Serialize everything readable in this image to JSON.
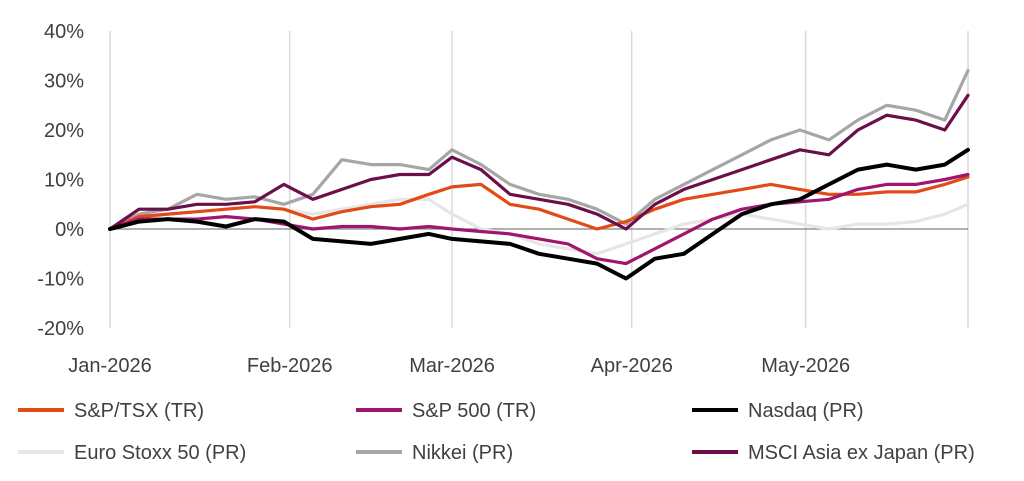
{
  "chart_data": {
    "type": "line",
    "title": "",
    "xlabel": "",
    "ylabel": "",
    "ylim": [
      -20,
      40
    ],
    "yticks": [
      -20,
      -10,
      0,
      10,
      20,
      30,
      40
    ],
    "ytick_labels": [
      "-20%",
      "-10%",
      "0%",
      "10%",
      "20%",
      "30%",
      "40%"
    ],
    "xlim": [
      "2026-01-01",
      "2026-05-29"
    ],
    "x_tick_dates": [
      "2026-01-01",
      "2026-02-01",
      "2026-03-01",
      "2026-04-01",
      "2026-05-01"
    ],
    "x_tick_labels": [
      "Jan-2026",
      "Feb-2026",
      "Mar-2026",
      "Apr-2026",
      "May-2026"
    ],
    "grid": "vertical",
    "legend": "bottom",
    "series": [
      {
        "name": "S&P/TSX (TR)",
        "color": "#E24A16",
        "x": [
          "2026-01-01",
          "2026-01-06",
          "2026-01-11",
          "2026-01-16",
          "2026-01-21",
          "2026-01-26",
          "2026-01-31",
          "2026-02-05",
          "2026-02-10",
          "2026-02-15",
          "2026-02-20",
          "2026-02-25",
          "2026-03-01",
          "2026-03-06",
          "2026-03-11",
          "2026-03-16",
          "2026-03-21",
          "2026-03-26",
          "2026-03-31",
          "2026-04-05",
          "2026-04-10",
          "2026-04-15",
          "2026-04-20",
          "2026-04-25",
          "2026-04-30",
          "2026-05-05",
          "2026-05-10",
          "2026-05-15",
          "2026-05-20",
          "2026-05-25",
          "2026-05-29"
        ],
        "y": [
          0,
          2.5,
          3,
          3.5,
          4,
          4.5,
          4,
          2,
          3.5,
          4.5,
          5,
          7,
          8.5,
          9,
          5,
          4,
          2,
          0,
          1.5,
          4,
          6,
          7,
          8,
          9,
          8,
          7,
          7,
          7.5,
          7.5,
          9,
          10.5
        ]
      },
      {
        "name": "S&P 500 (TR)",
        "color": "#A0156F",
        "x": [
          "2026-01-01",
          "2026-01-06",
          "2026-01-11",
          "2026-01-16",
          "2026-01-21",
          "2026-01-26",
          "2026-01-31",
          "2026-02-05",
          "2026-02-10",
          "2026-02-15",
          "2026-02-20",
          "2026-02-25",
          "2026-03-01",
          "2026-03-06",
          "2026-03-11",
          "2026-03-16",
          "2026-03-21",
          "2026-03-26",
          "2026-03-31",
          "2026-04-05",
          "2026-04-10",
          "2026-04-15",
          "2026-04-20",
          "2026-04-25",
          "2026-04-30",
          "2026-05-05",
          "2026-05-10",
          "2026-05-15",
          "2026-05-20",
          "2026-05-25",
          "2026-05-29"
        ],
        "y": [
          0,
          2,
          2,
          2,
          2.5,
          2,
          1,
          0,
          0.5,
          0.5,
          0,
          0.5,
          0,
          -0.5,
          -1,
          -2,
          -3,
          -6,
          -7,
          -4,
          -1,
          2,
          4,
          5,
          5.5,
          6,
          8,
          9,
          9,
          10,
          11
        ]
      },
      {
        "name": "Nasdaq (PR)",
        "color": "#000000",
        "x": [
          "2026-01-01",
          "2026-01-06",
          "2026-01-11",
          "2026-01-16",
          "2026-01-21",
          "2026-01-26",
          "2026-01-31",
          "2026-02-05",
          "2026-02-10",
          "2026-02-15",
          "2026-02-20",
          "2026-02-25",
          "2026-03-01",
          "2026-03-06",
          "2026-03-11",
          "2026-03-16",
          "2026-03-21",
          "2026-03-26",
          "2026-03-31",
          "2026-04-05",
          "2026-04-10",
          "2026-04-15",
          "2026-04-20",
          "2026-04-25",
          "2026-04-30",
          "2026-05-05",
          "2026-05-10",
          "2026-05-15",
          "2026-05-20",
          "2026-05-25",
          "2026-05-29"
        ],
        "y": [
          0,
          1.5,
          2,
          1.5,
          0.5,
          2,
          1.5,
          -2,
          -2.5,
          -3,
          -2,
          -1,
          -2,
          -2.5,
          -3,
          -5,
          -6,
          -7,
          -10,
          -6,
          -5,
          -1,
          3,
          5,
          6,
          9,
          12,
          13,
          12,
          13,
          16
        ]
      },
      {
        "name": "Euro Stoxx 50 (PR)",
        "color": "#E6E6E6",
        "x": [
          "2026-01-01",
          "2026-01-06",
          "2026-01-11",
          "2026-01-16",
          "2026-01-21",
          "2026-01-26",
          "2026-01-31",
          "2026-02-05",
          "2026-02-10",
          "2026-02-15",
          "2026-02-20",
          "2026-02-25",
          "2026-03-01",
          "2026-03-06",
          "2026-03-11",
          "2026-03-16",
          "2026-03-21",
          "2026-03-26",
          "2026-03-31",
          "2026-04-05",
          "2026-04-10",
          "2026-04-15",
          "2026-04-20",
          "2026-04-25",
          "2026-04-30",
          "2026-05-05",
          "2026-05-10",
          "2026-05-15",
          "2026-05-20",
          "2026-05-25",
          "2026-05-29"
        ],
        "y": [
          0,
          2,
          3,
          3.5,
          4,
          4.5,
          4,
          3,
          4,
          5,
          6,
          6,
          3,
          0,
          -1,
          -3,
          -4,
          -5,
          -3,
          -1,
          1,
          2,
          3,
          2,
          1,
          0,
          1,
          1,
          1.5,
          3,
          5
        ]
      },
      {
        "name": "Nikkei (PR)",
        "color": "#A6A6A6",
        "x": [
          "2026-01-01",
          "2026-01-06",
          "2026-01-11",
          "2026-01-16",
          "2026-01-21",
          "2026-01-26",
          "2026-01-31",
          "2026-02-05",
          "2026-02-10",
          "2026-02-15",
          "2026-02-20",
          "2026-02-25",
          "2026-03-01",
          "2026-03-06",
          "2026-03-11",
          "2026-03-16",
          "2026-03-21",
          "2026-03-26",
          "2026-03-31",
          "2026-04-05",
          "2026-04-10",
          "2026-04-15",
          "2026-04-20",
          "2026-04-25",
          "2026-04-30",
          "2026-05-05",
          "2026-05-10",
          "2026-05-15",
          "2026-05-20",
          "2026-05-25",
          "2026-05-29"
        ],
        "y": [
          0,
          3,
          4,
          7,
          6,
          6.5,
          5,
          7,
          14,
          13,
          13,
          12,
          16,
          13,
          9,
          7,
          6,
          4,
          1,
          6,
          9,
          12,
          15,
          18,
          20,
          18,
          22,
          25,
          24,
          22,
          32
        ]
      },
      {
        "name": "MSCI Asia ex Japan (PR)",
        "color": "#6A0F49",
        "x": [
          "2026-01-01",
          "2026-01-06",
          "2026-01-11",
          "2026-01-16",
          "2026-01-21",
          "2026-01-26",
          "2026-01-31",
          "2026-02-05",
          "2026-02-10",
          "2026-02-15",
          "2026-02-20",
          "2026-02-25",
          "2026-03-01",
          "2026-03-06",
          "2026-03-11",
          "2026-03-16",
          "2026-03-21",
          "2026-03-26",
          "2026-03-31",
          "2026-04-05",
          "2026-04-10",
          "2026-04-15",
          "2026-04-20",
          "2026-04-25",
          "2026-04-30",
          "2026-05-05",
          "2026-05-10",
          "2026-05-15",
          "2026-05-20",
          "2026-05-25",
          "2026-05-29"
        ],
        "y": [
          0,
          4,
          4,
          5,
          5,
          5.5,
          9,
          6,
          8,
          10,
          11,
          11,
          14.5,
          12,
          7,
          6,
          5,
          3,
          0,
          5,
          8,
          10,
          12,
          14,
          16,
          15,
          20,
          23,
          22,
          20,
          27
        ]
      }
    ]
  }
}
